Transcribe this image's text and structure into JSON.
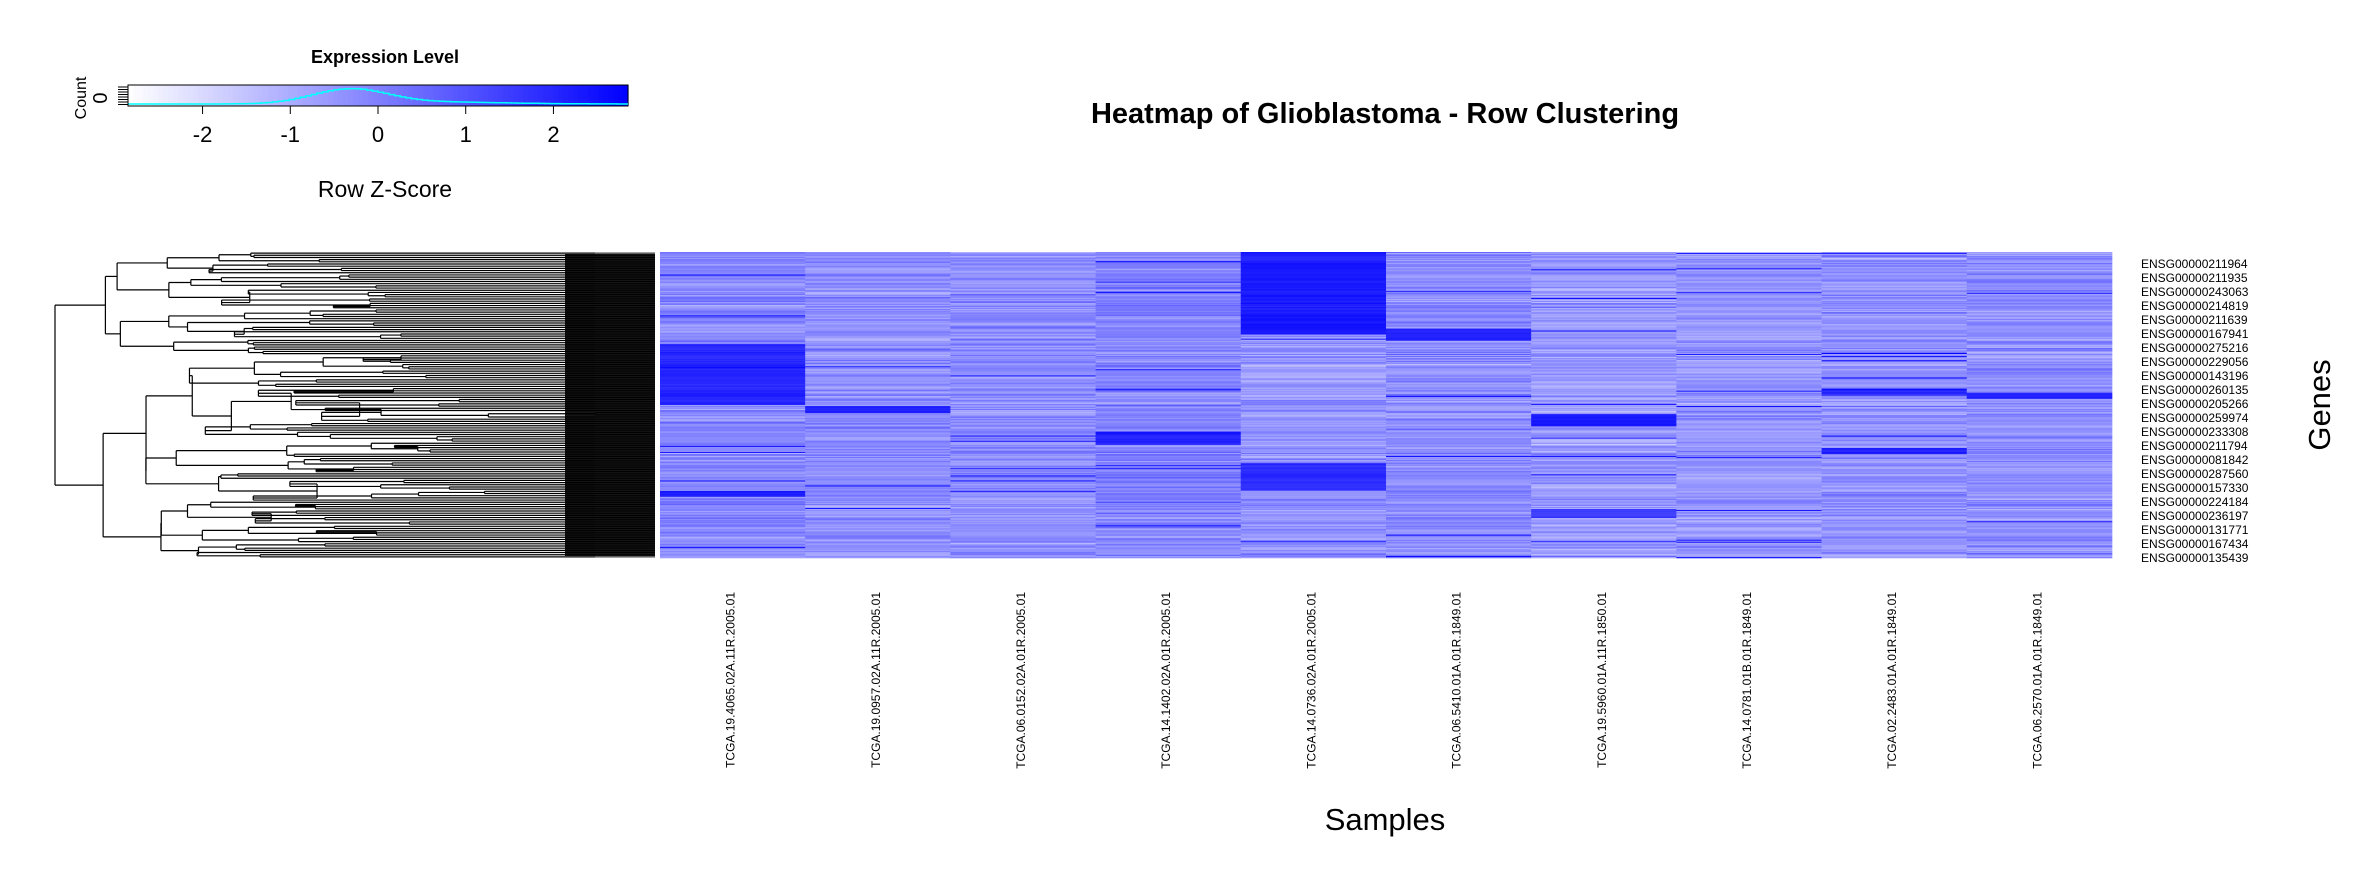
{
  "chart_data": {
    "type": "heatmap",
    "title": "Heatmap of Glioblastoma - Row Clustering",
    "xlabel": "Samples",
    "ylabel": "Genes",
    "row_dendrogram": true,
    "color_key": {
      "title": "Expression Level",
      "xlabel": "Row Z-Score",
      "ylabel": "Count",
      "y_tick": "0",
      "ticks": [
        -2,
        -1,
        0,
        1,
        2
      ],
      "range": [
        -2.85,
        2.85
      ],
      "colors": {
        "low": "#ffffff",
        "high": "#0000ff"
      },
      "histogram_color": "#00ffff"
    },
    "samples": [
      "TCGA.19.4065.02A.11R.2005.01",
      "TCGA.19.0957.02A.11R.2005.01",
      "TCGA.06.0152.02A.01R.2005.01",
      "TCGA.14.1402.02A.01R.2005.01",
      "TCGA.14.0736.02A.01R.2005.01",
      "TCGA.06.5410.01A.01R.1849.01",
      "TCGA.19.5960.01A.11R.1850.01",
      "TCGA.14.0781.01B.01R.1849.01",
      "TCGA.02.2483.01A.01R.1849.01",
      "TCGA.06.2570.01A.01R.1849.01"
    ],
    "gene_labels": [
      "ENSG00000211964",
      "ENSG00000211935",
      "ENSG00000243063",
      "ENSG00000214819",
      "ENSG00000211639",
      "ENSG00000167941",
      "ENSG00000275216",
      "ENSG00000229056",
      "ENSG00000143196",
      "ENSG00000260135",
      "ENSG00000205266",
      "ENSG00000259974",
      "ENSG00000233308",
      "ENSG00000211794",
      "ENSG00000081842",
      "ENSG00000287560",
      "ENSG00000157330",
      "ENSG00000224184",
      "ENSG00000236197",
      "ENSG00000131771",
      "ENSG00000167434",
      "ENSG00000135439"
    ],
    "highlight_blocks": [
      {
        "sample": 4,
        "from": 0.0,
        "to": 0.27,
        "z": 2.6
      },
      {
        "sample": 0,
        "from": 0.3,
        "to": 0.5,
        "z": 2.3
      },
      {
        "sample": 3,
        "from": 0.59,
        "to": 0.63,
        "z": 2.4
      },
      {
        "sample": 6,
        "from": 0.53,
        "to": 0.57,
        "z": 2.6
      },
      {
        "sample": 5,
        "from": 0.25,
        "to": 0.29,
        "z": 2.5
      },
      {
        "sample": 1,
        "from": 0.505,
        "to": 0.525,
        "z": 2.7
      },
      {
        "sample": 4,
        "from": 0.69,
        "to": 0.78,
        "z": 2.2
      },
      {
        "sample": 0,
        "from": 0.78,
        "to": 0.8,
        "z": 2.4
      },
      {
        "sample": 9,
        "from": 0.46,
        "to": 0.48,
        "z": 2.5
      },
      {
        "sample": 8,
        "from": 0.64,
        "to": 0.66,
        "z": 2.4
      },
      {
        "sample": 8,
        "from": 0.45,
        "to": 0.47,
        "z": 2.2
      },
      {
        "sample": 6,
        "from": 0.84,
        "to": 0.87,
        "z": 1.9
      }
    ]
  }
}
